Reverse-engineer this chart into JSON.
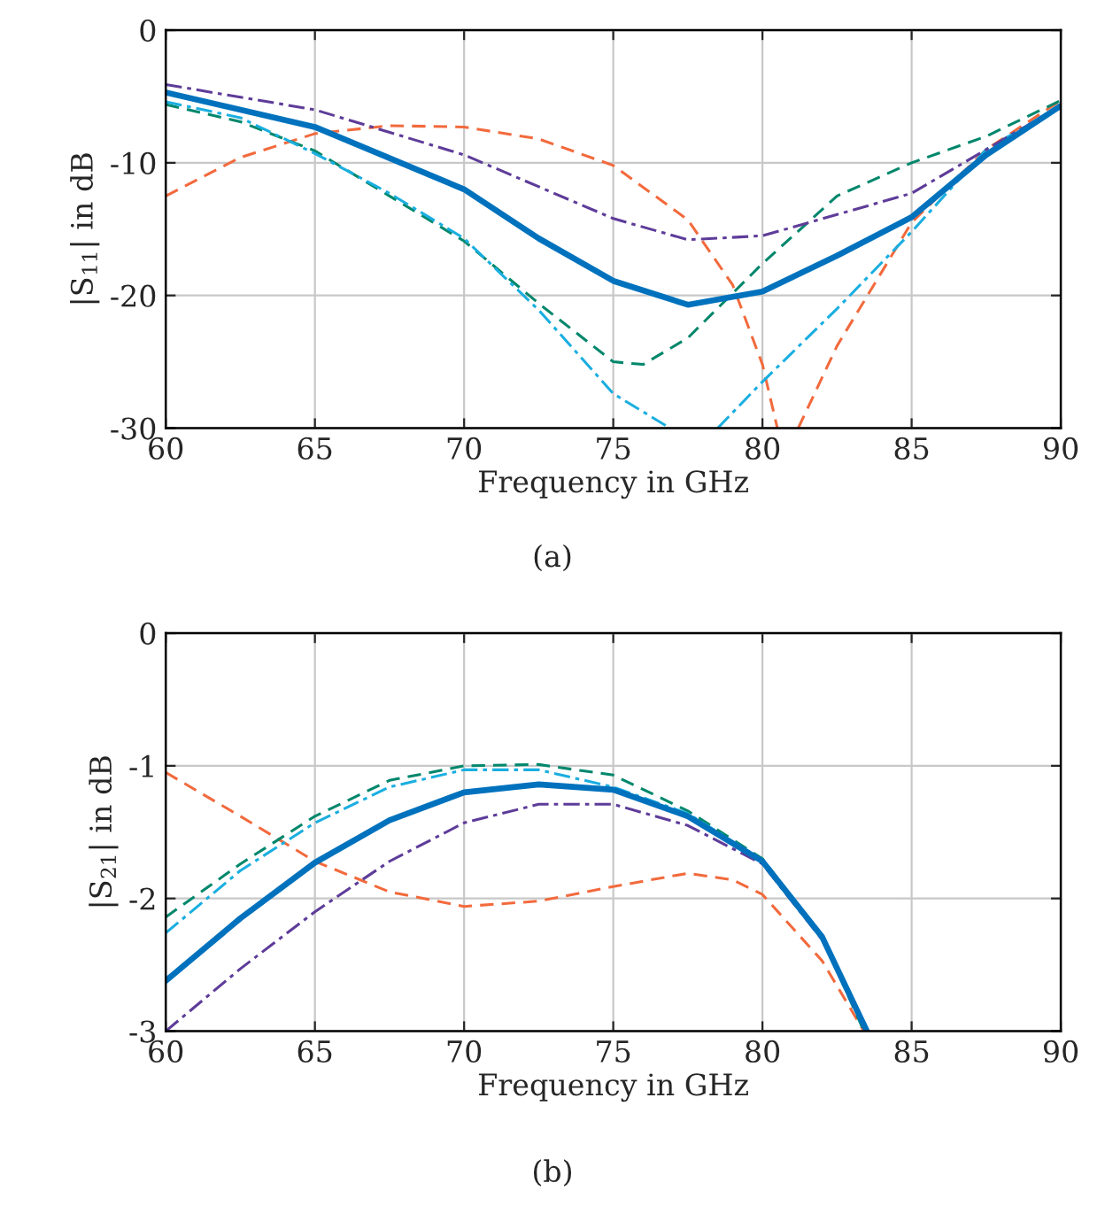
{
  "chart_data": [
    {
      "type": "line",
      "xlabel": "Frequency in GHz",
      "ylabel": "|S$_{11}$| in dB",
      "xlim": [
        60,
        90
      ],
      "ylim": [
        -30,
        0
      ],
      "xticks": [
        60,
        65,
        70,
        75,
        80,
        85,
        90
      ],
      "yticks": [
        -30,
        -20,
        -10,
        0
      ],
      "grid": true,
      "annotations": [
        "(a)"
      ],
      "series": [
        {
          "color": "#f26a3d",
          "line_style": "dashed",
          "x": [
            60,
            62.5,
            65,
            67.5,
            70,
            72.5,
            75,
            77.5,
            79,
            80,
            80.5,
            null,
            81.2,
            82.5,
            85,
            87.5,
            90
          ],
          "values": [
            -12.5,
            -9.6,
            -7.8,
            -7.2,
            -7.3,
            -8.2,
            -10.2,
            -14.3,
            -19.2,
            -25.2,
            -30,
            null,
            -30,
            -23.8,
            -14.5,
            -9,
            -5.3
          ]
        },
        {
          "color": "#00876c",
          "line_style": "dashed",
          "x": [
            60,
            62.5,
            65,
            67.5,
            70,
            72.5,
            75,
            76,
            77.5,
            80,
            82.5,
            85,
            87.5,
            90
          ],
          "values": [
            -5.6,
            -6.9,
            -9.1,
            -12.5,
            -15.9,
            -20.6,
            -25,
            -25.2,
            -23.2,
            -17.6,
            -12.5,
            -10,
            -8,
            -5.3
          ]
        },
        {
          "color": "#1aaee0",
          "line_style": "dashdot",
          "x": [
            60,
            62.5,
            65,
            67.5,
            70,
            72.5,
            75,
            76.9,
            null,
            78.5,
            80,
            82.5,
            85,
            87.5,
            90
          ],
          "values": [
            -5.4,
            -6.6,
            -9.3,
            -12.3,
            -15.7,
            -21.1,
            -27.4,
            -30,
            null,
            -30,
            -26.5,
            -21,
            -15.2,
            -9,
            -5.7
          ]
        },
        {
          "color": "#5e3c99",
          "line_style": "dashdot",
          "x": [
            60,
            65,
            70,
            75,
            77.5,
            80,
            82.5,
            85,
            87.5,
            90
          ],
          "values": [
            -4.1,
            -6.0,
            -9.4,
            -14.2,
            -15.8,
            -15.5,
            -13.9,
            -12.3,
            -9,
            -5.7
          ]
        },
        {
          "color": "#0072bd",
          "line_style": "solid",
          "x": [
            60,
            65,
            70,
            72.5,
            75,
            77.5,
            80,
            82.5,
            85,
            87.5,
            90
          ],
          "values": [
            -4.7,
            -7.3,
            -12.0,
            -15.7,
            -18.9,
            -20.7,
            -19.7,
            -17,
            -14.1,
            -9.4,
            -5.7
          ]
        }
      ]
    },
    {
      "type": "line",
      "xlabel": "Frequency in GHz",
      "ylabel": "|S$_{21}$| in dB",
      "xlim": [
        60,
        90
      ],
      "ylim": [
        -3,
        0
      ],
      "xticks": [
        60,
        65,
        70,
        75,
        80,
        85,
        90
      ],
      "yticks": [
        -3,
        -2,
        -1,
        0
      ],
      "grid": true,
      "annotations": [
        "(b)"
      ],
      "series": [
        {
          "color": "#f26a3d",
          "line_style": "dashed",
          "x": [
            60,
            62.5,
            65,
            67.5,
            70,
            72.5,
            75,
            77.5,
            79,
            80,
            82,
            83.4
          ],
          "values": [
            -1.05,
            -1.38,
            -1.72,
            -1.95,
            -2.06,
            -2.02,
            -1.91,
            -1.81,
            -1.86,
            -1.97,
            -2.47,
            -3
          ]
        },
        {
          "color": "#00876c",
          "line_style": "dashed",
          "x": [
            60,
            62.5,
            65,
            67.5,
            70,
            72.5,
            75,
            77.5,
            80,
            82,
            83.4
          ],
          "values": [
            -2.14,
            -1.74,
            -1.38,
            -1.11,
            -1.0,
            -0.99,
            -1.07,
            -1.34,
            -1.7,
            -2.29,
            -3
          ]
        },
        {
          "color": "#1aaee0",
          "line_style": "dashdot",
          "x": [
            60,
            62.5,
            65,
            67.5,
            70,
            72.5,
            75,
            77.5,
            80,
            82,
            83.5
          ],
          "values": [
            -2.26,
            -1.79,
            -1.43,
            -1.16,
            -1.03,
            -1.03,
            -1.16,
            -1.36,
            -1.71,
            -2.29,
            -3
          ]
        },
        {
          "color": "#5e3c99",
          "line_style": "dashdot",
          "x": [
            60,
            62.5,
            65,
            67.5,
            70,
            72.5,
            75,
            77.5,
            80,
            82,
            83.5
          ],
          "values": [
            -3.0,
            -2.53,
            -2.1,
            -1.72,
            -1.43,
            -1.29,
            -1.29,
            -1.45,
            -1.74,
            -2.31,
            -3
          ]
        },
        {
          "color": "#0072bd",
          "line_style": "solid",
          "x": [
            60,
            62.5,
            65,
            67.5,
            70,
            72.5,
            75,
            77.5,
            80,
            82,
            83.5
          ],
          "values": [
            -2.62,
            -2.15,
            -1.73,
            -1.41,
            -1.2,
            -1.14,
            -1.18,
            -1.38,
            -1.72,
            -2.29,
            -3
          ]
        }
      ]
    }
  ]
}
